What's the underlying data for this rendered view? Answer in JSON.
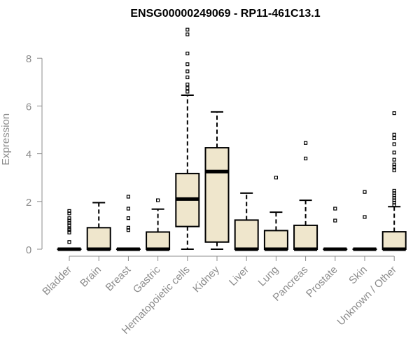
{
  "chart_data": {
    "type": "box",
    "title": "ENSG00000249069 - RP11-461C13.1",
    "ylabel": "Expression",
    "xlabel": "",
    "ylim": [
      0,
      9.5
    ],
    "yticks": [
      0,
      2,
      4,
      6,
      8
    ],
    "grid": false,
    "box_fill": "#efe6cc",
    "box_stroke": "#000000",
    "axis_color": "#8c8c8c",
    "categories": [
      "Bladder",
      "Brain",
      "Breast",
      "Gastric",
      "Hematopoietic cells",
      "Kidney",
      "Liver",
      "Lung",
      "Pancreas",
      "Prostate",
      "Skin",
      "Unknown / Other"
    ],
    "boxes": [
      {
        "category": "Bladder",
        "whisker_low": 0,
        "q1": 0,
        "median": 0,
        "q3": 0,
        "whisker_high": 0,
        "outliers": [
          0.3,
          0.7,
          0.8,
          0.85,
          1.0,
          1.1,
          1.2,
          1.3,
          1.5,
          1.6
        ]
      },
      {
        "category": "Brain",
        "whisker_low": 0,
        "q1": 0,
        "median": 0,
        "q3": 0.9,
        "whisker_high": 1.95,
        "outliers": []
      },
      {
        "category": "Breast",
        "whisker_low": 0,
        "q1": 0,
        "median": 0,
        "q3": 0,
        "whisker_high": 0,
        "outliers": [
          0.8,
          0.9,
          1.3,
          1.7,
          2.2
        ]
      },
      {
        "category": "Gastric",
        "whisker_low": 0,
        "q1": 0,
        "median": 0,
        "q3": 0.72,
        "whisker_high": 1.68,
        "outliers": [
          2.05
        ]
      },
      {
        "category": "Hematopoietic cells",
        "whisker_low": 0,
        "q1": 0.95,
        "median": 2.1,
        "q3": 3.17,
        "whisker_high": 6.45,
        "outliers": [
          6.6,
          6.75,
          6.9,
          7.2,
          7.45,
          7.75,
          8.2,
          9.0,
          9.2
        ]
      },
      {
        "category": "Kidney",
        "whisker_low": 0,
        "q1": 0.3,
        "median": 3.25,
        "q3": 4.25,
        "whisker_high": 5.75,
        "outliers": []
      },
      {
        "category": "Liver",
        "whisker_low": 0,
        "q1": 0,
        "median": 0,
        "q3": 1.22,
        "whisker_high": 2.35,
        "outliers": []
      },
      {
        "category": "Lung",
        "whisker_low": 0,
        "q1": 0,
        "median": 0,
        "q3": 0.78,
        "whisker_high": 1.55,
        "outliers": [
          3.0
        ]
      },
      {
        "category": "Pancreas",
        "whisker_low": 0,
        "q1": 0,
        "median": 0,
        "q3": 1.0,
        "whisker_high": 2.05,
        "outliers": [
          3.8,
          4.45
        ]
      },
      {
        "category": "Prostate",
        "whisker_low": 0,
        "q1": 0,
        "median": 0,
        "q3": 0,
        "whisker_high": 0,
        "outliers": [
          1.2,
          1.7
        ]
      },
      {
        "category": "Skin",
        "whisker_low": 0,
        "q1": 0,
        "median": 0,
        "q3": 0,
        "whisker_high": 0,
        "outliers": [
          1.35,
          2.4
        ]
      },
      {
        "category": "Unknown / Other",
        "whisker_low": 0,
        "q1": 0,
        "median": 0,
        "q3": 0.73,
        "whisker_high": 1.78,
        "outliers": [
          1.85,
          1.95,
          2.05,
          2.15,
          2.25,
          2.35,
          2.45,
          3.3,
          3.45,
          3.55,
          3.75,
          4.05,
          4.4,
          4.65,
          4.8,
          5.7
        ]
      }
    ]
  }
}
